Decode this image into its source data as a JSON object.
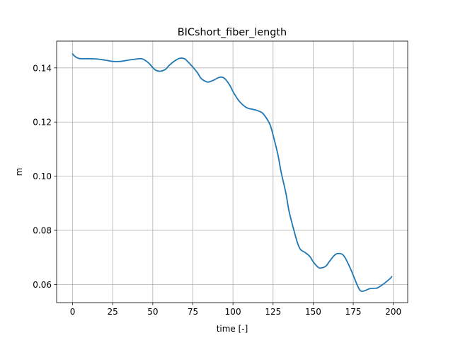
{
  "chart_data": {
    "type": "line",
    "title": "BICshort_fiber_length",
    "xlabel": "time [-]",
    "ylabel": "m",
    "xlim": [
      -9.95,
      208.95
    ],
    "ylim": [
      0.0533,
      0.1499
    ],
    "xticks": [
      0,
      25,
      50,
      75,
      100,
      125,
      150,
      175,
      200
    ],
    "yticks": [
      0.06,
      0.08,
      0.1,
      0.12,
      0.14
    ],
    "ytick_labels": [
      "0.06",
      "0.08",
      "0.10",
      "0.12",
      "0.14"
    ],
    "grid": true,
    "line_color": "#1f77b4",
    "series": [
      {
        "x": [
          0,
          1,
          3,
          5,
          10,
          15,
          20,
          25,
          30,
          35,
          40,
          43,
          45,
          48,
          50,
          52,
          55,
          58,
          60,
          63,
          66,
          68,
          70,
          72,
          75,
          78,
          80,
          83,
          85,
          88,
          91,
          93,
          95,
          98,
          100,
          103,
          105,
          108,
          110,
          113,
          115,
          118,
          120,
          123,
          125,
          128,
          130,
          133,
          135,
          138,
          140,
          142,
          145,
          148,
          150,
          153,
          155,
          158,
          160,
          163,
          165,
          168,
          170,
          173,
          175,
          178,
          180,
          183,
          185,
          188,
          190,
          193,
          195,
          198,
          199
        ],
        "y": [
          0.1452,
          0.1445,
          0.1437,
          0.1434,
          0.1434,
          0.1433,
          0.1429,
          0.1424,
          0.1424,
          0.1429,
          0.1433,
          0.1434,
          0.1429,
          0.1415,
          0.1401,
          0.1391,
          0.1388,
          0.1395,
          0.1408,
          0.1423,
          0.1434,
          0.1436,
          0.1433,
          0.1422,
          0.1403,
          0.1381,
          0.1362,
          0.135,
          0.1348,
          0.1355,
          0.1364,
          0.1366,
          0.136,
          0.1336,
          0.1313,
          0.1284,
          0.127,
          0.1255,
          0.125,
          0.1246,
          0.1243,
          0.1235,
          0.1222,
          0.1192,
          0.1152,
          0.108,
          0.1016,
          0.0937,
          0.087,
          0.08,
          0.0758,
          0.073,
          0.0718,
          0.0703,
          0.0684,
          0.0664,
          0.0661,
          0.0668,
          0.0684,
          0.0706,
          0.0714,
          0.0712,
          0.0698,
          0.0662,
          0.0634,
          0.0591,
          0.0575,
          0.0579,
          0.0584,
          0.0586,
          0.0587,
          0.0598,
          0.0607,
          0.0622,
          0.0629
        ]
      }
    ]
  }
}
